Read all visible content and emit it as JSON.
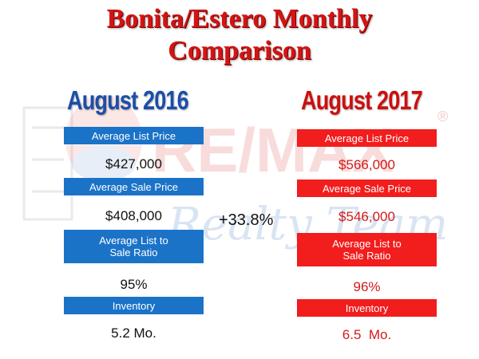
{
  "title": {
    "line1": "Bonita/Estero Monthly",
    "line2": "Comparison"
  },
  "colors": {
    "title": "#d41414",
    "blue": "#1b73c8",
    "red": "#f21d1d",
    "year_blue": "#1a4fa8"
  },
  "left": {
    "year": "August 2016",
    "avg_list_label": "Average List Price",
    "avg_list_value": "$427,000",
    "avg_sale_label": "Average Sale Price",
    "avg_sale_value": "$408,000",
    "ratio_label": "Average List to\nSale Ratio",
    "ratio_value": "95%",
    "inventory_label": "Inventory",
    "inventory_value": "5.2 Mo."
  },
  "right": {
    "year": "August 2017",
    "avg_list_label": "Average List Price",
    "avg_list_value": "$566,000",
    "avg_sale_label": "Average Sale Price",
    "avg_sale_value": "$546,000",
    "ratio_label": "Average List to\nSale Ratio",
    "ratio_value": "96%",
    "inventory_label": "Inventory",
    "inventory_value": "6.5  Mo."
  },
  "change": "+33.8%",
  "watermark": {
    "brand": "RE/MAX",
    "subtitle": "Realty Team",
    "icon": "remax-balloon-logo",
    "mark": "®"
  }
}
